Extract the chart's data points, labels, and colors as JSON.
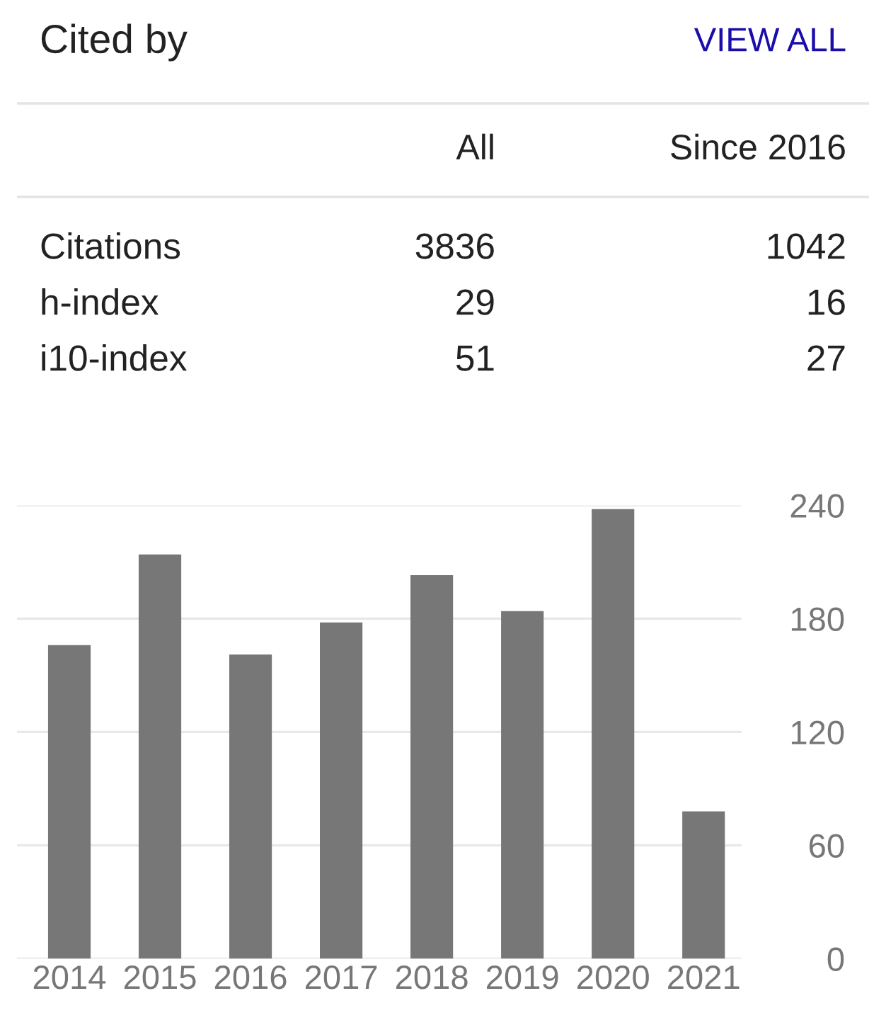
{
  "chart_data": [
    {
      "type": "other",
      "title": "Cited by",
      "annotations": [
        "VIEW ALL"
      ],
      "categories": [
        "Citations",
        "h-index",
        "i10-index"
      ],
      "series": [
        {
          "name": "All",
          "values": [
            3836,
            29,
            51
          ]
        },
        {
          "name": "Since 2016",
          "values": [
            1042,
            16,
            27
          ]
        }
      ],
      "data_labels": true
    },
    {
      "type": "bar",
      "categories": [
        "2014",
        "2015",
        "2016",
        "2017",
        "2018",
        "2019",
        "2020",
        "2021"
      ],
      "values": [
        166,
        214,
        161,
        178,
        203,
        184,
        238,
        78
      ],
      "color": "#777777",
      "ylim": [
        0,
        240
      ],
      "yticks": [
        0,
        60,
        120,
        180,
        240
      ],
      "grid": "y"
    }
  ]
}
